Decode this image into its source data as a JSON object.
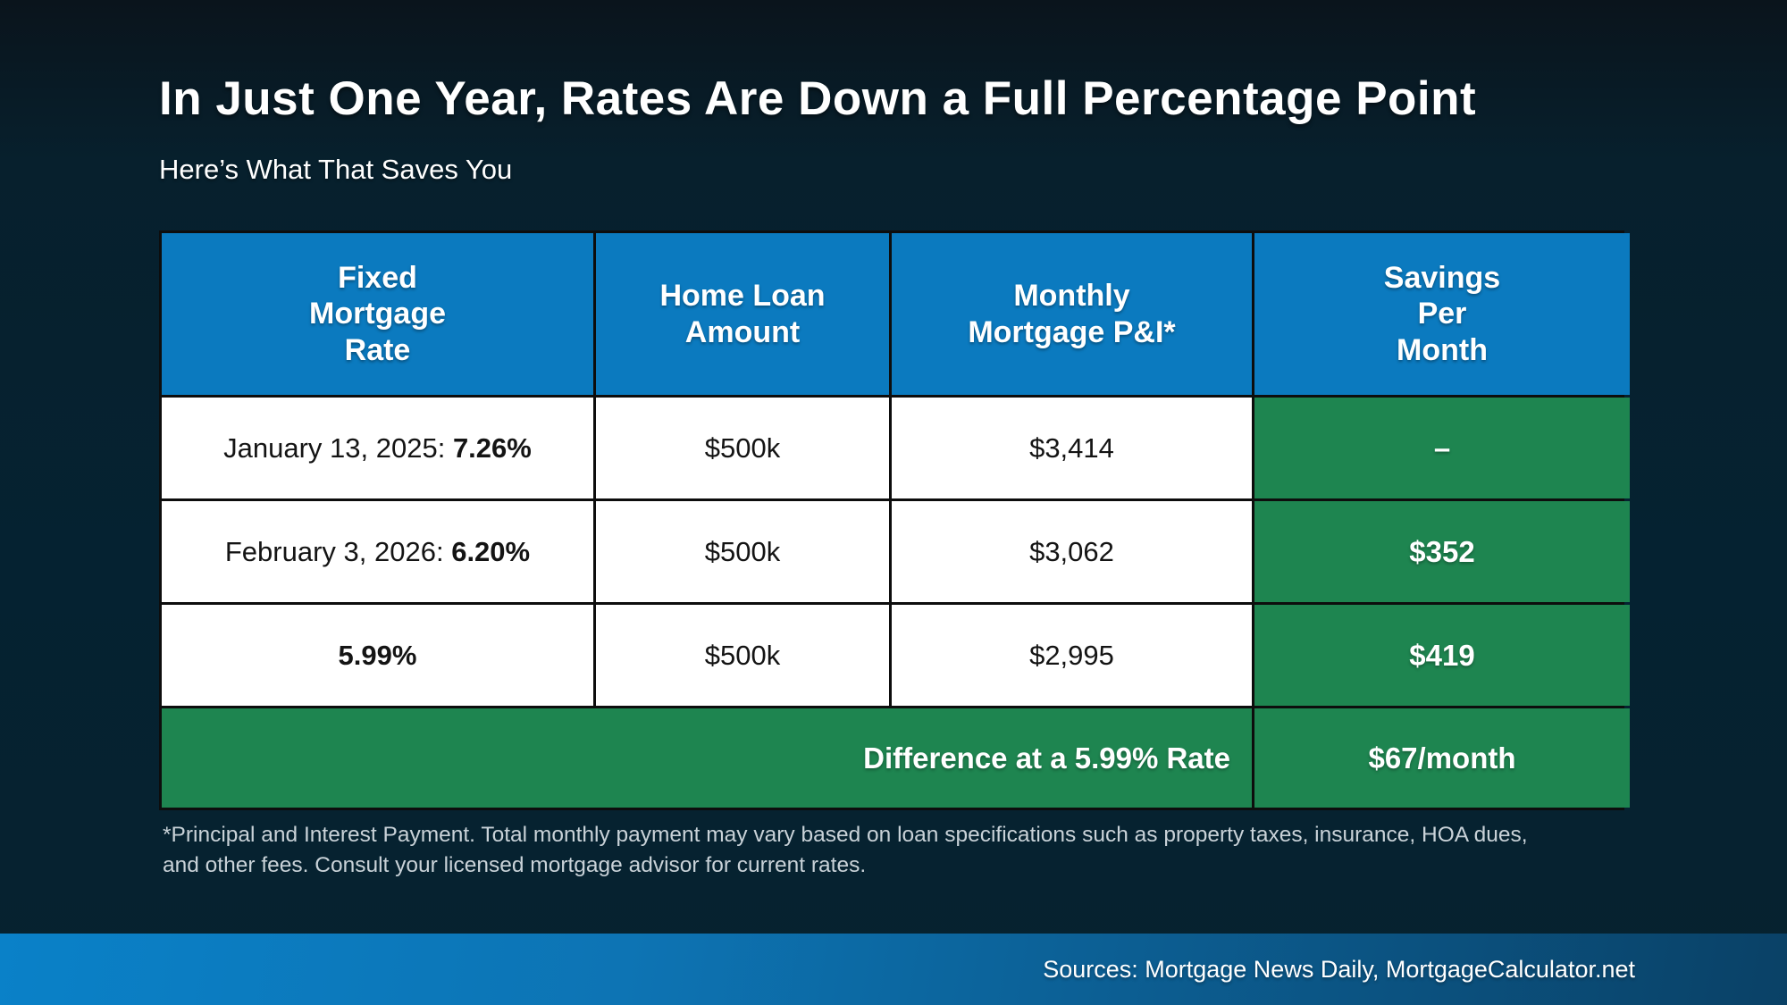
{
  "page": {
    "title": "In Just One Year, Rates Are Down a Full Percentage Point",
    "subtitle": "Here’s What That Saves You"
  },
  "table": {
    "headers": [
      "Fixed\nMortgage\nRate",
      "Home Loan\nAmount",
      "Monthly\nMortgage P&I*",
      "Savings\nPer\nMonth"
    ],
    "rows": [
      {
        "date_label": "January 13, 2025: ",
        "rate": "7.26%",
        "loan_amount": "$500k",
        "monthly_pi": "$3,414",
        "savings": "–"
      },
      {
        "date_label": "February 3, 2026: ",
        "rate": "6.20%",
        "loan_amount": "$500k",
        "monthly_pi": "$3,062",
        "savings": "$352"
      },
      {
        "date_label": "",
        "rate": "5.99%",
        "loan_amount": "$500k",
        "monthly_pi": "$2,995",
        "savings": "$419"
      }
    ],
    "summary": {
      "label": "Difference at a 5.99% Rate",
      "value": "$67/month"
    }
  },
  "footnote": {
    "line1": "*Principal and Interest Payment. Total monthly payment may vary based on loan specifications such as property taxes, insurance, HOA dues,",
    "line2": "and other fees. Consult your licensed mortgage advisor for current rates."
  },
  "footer": {
    "sources": "Sources: Mortgage News Daily, MortgageCalculator.net"
  },
  "colors": {
    "header_blue": "#0b7abf",
    "accent_green": "#1e8550",
    "border": "#0d0d0d",
    "bar_left": "#0a81c8",
    "bar_right": "#0a4166",
    "background": "#052231"
  },
  "chart_data": {
    "type": "table",
    "title": "In Just One Year, Rates Are Down a Full Percentage Point",
    "subtitle": "Here’s What That Saves You",
    "columns": [
      "Fixed Mortgage Rate",
      "Home Loan Amount",
      "Monthly Mortgage P&I*",
      "Savings Per Month"
    ],
    "rows": [
      [
        "January 13, 2025: 7.26%",
        "$500k",
        "$3,414",
        "–"
      ],
      [
        "February 3, 2026: 6.20%",
        "$500k",
        "$3,062",
        "$352"
      ],
      [
        "5.99%",
        "$500k",
        "$2,995",
        "$419"
      ],
      [
        "Difference at a 5.99% Rate",
        "",
        "",
        "$67/month"
      ]
    ],
    "footnote": "*Principal and Interest Payment. Total monthly payment may vary based on loan specifications such as property taxes, insurance, HOA dues, and other fees. Consult your licensed mortgage advisor for current rates.",
    "sources": "Sources: Mortgage News Daily, MortgageCalculator.net"
  }
}
